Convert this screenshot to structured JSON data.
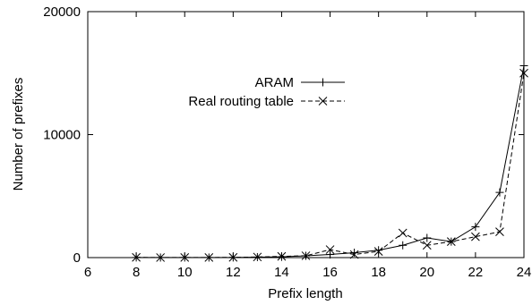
{
  "chart_data": {
    "type": "line",
    "title": "",
    "xlabel": "Prefix length",
    "ylabel": "Number of prefixes",
    "xlim": [
      6,
      24
    ],
    "ylim": [
      0,
      20000
    ],
    "xticks": [
      "6",
      "8",
      "10",
      "12",
      "14",
      "16",
      "18",
      "20",
      "22",
      "24"
    ],
    "yticks": [
      "0",
      "10000",
      "20000"
    ],
    "grid": false,
    "legend_position": "center-right",
    "series": [
      {
        "name": "ARAM",
        "marker": "plus",
        "line_style": "solid",
        "color": "#000000",
        "x": [
          8,
          9,
          10,
          11,
          12,
          13,
          14,
          15,
          16,
          17,
          18,
          19,
          20,
          21,
          22,
          23,
          24
        ],
        "y": [
          10,
          5,
          5,
          5,
          10,
          40,
          60,
          150,
          250,
          400,
          600,
          1000,
          1600,
          1300,
          2500,
          5300,
          15600
        ]
      },
      {
        "name": "Real routing table",
        "marker": "cross",
        "line_style": "dashed",
        "color": "#000000",
        "x": [
          8,
          9,
          10,
          11,
          12,
          13,
          14,
          15,
          16,
          17,
          18,
          19,
          20,
          21,
          22,
          23,
          24
        ],
        "y": [
          20,
          5,
          10,
          10,
          20,
          50,
          100,
          150,
          650,
          250,
          500,
          2000,
          1000,
          1300,
          1700,
          2100,
          15000
        ]
      }
    ]
  }
}
